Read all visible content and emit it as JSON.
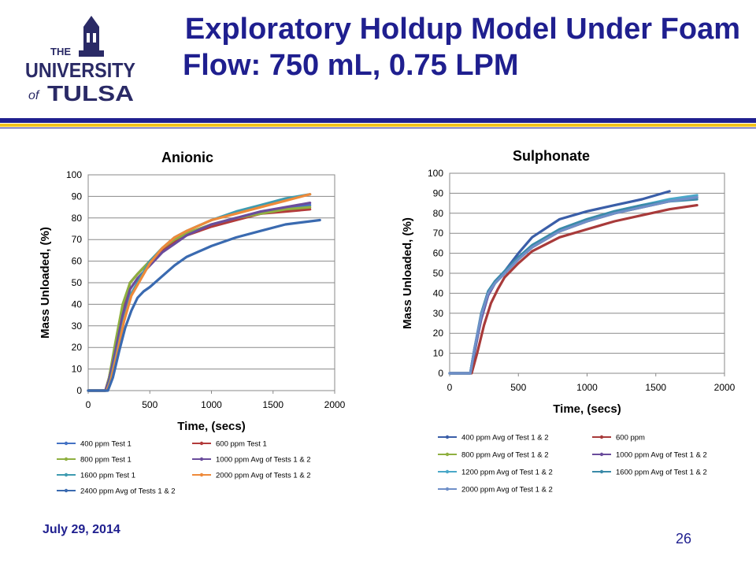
{
  "slide": {
    "title_line1": "Exploratory Holdup Model Under Foam",
    "title_line2": "Flow: 750 mL, 0.75 LPM",
    "date": "July 29, 2014",
    "page_number": "26",
    "logo": {
      "line1": "THE",
      "line2": "UNIVERSITY",
      "line3_prefix": "of",
      "line3": "TULSA"
    }
  },
  "colors": {
    "title": "#1f1f8f",
    "rule_blue": "#1f1f8f",
    "rule_gold": "#f2c21b"
  },
  "chart_data": [
    {
      "type": "line",
      "title": "Anionic",
      "xlabel": "Time, (secs)",
      "ylabel": "Mass Unloaded, (%)",
      "xlim": [
        0,
        2000
      ],
      "ylim": [
        0,
        100
      ],
      "xticks": [
        "0",
        "500",
        "1000",
        "1500",
        "2000"
      ],
      "yticks": [
        "0",
        "10",
        "20",
        "30",
        "40",
        "50",
        "60",
        "70",
        "80",
        "90",
        "100"
      ],
      "grid": true,
      "legend_position": "bottom",
      "series": [
        {
          "name": "400 ppm Test 1",
          "color": "#4472c4",
          "x": [
            0,
            140,
            170,
            220,
            280,
            340,
            400,
            500,
            600,
            700,
            800,
            1000,
            1200,
            1400,
            1600,
            1800
          ],
          "y": [
            0,
            0,
            6,
            20,
            38,
            50,
            54,
            60,
            65,
            69,
            72,
            77,
            80,
            82,
            84,
            86
          ]
        },
        {
          "name": "600 ppm Test 1",
          "color": "#b23a3a",
          "x": [
            0,
            140,
            170,
            220,
            280,
            340,
            400,
            500,
            600,
            700,
            800,
            1000,
            1200,
            1400,
            1600,
            1800
          ],
          "y": [
            0,
            0,
            6,
            20,
            38,
            50,
            54,
            60,
            65,
            69,
            72,
            76,
            79,
            82,
            83,
            84
          ]
        },
        {
          "name": "800 ppm Test 1",
          "color": "#8fb040",
          "x": [
            0,
            140,
            170,
            220,
            280,
            340,
            400,
            500,
            600,
            700,
            800,
            1000,
            1200,
            1400,
            1600,
            1800
          ],
          "y": [
            0,
            0,
            6,
            22,
            40,
            50,
            54,
            60,
            66,
            70,
            73,
            77,
            80,
            82,
            84,
            85
          ]
        },
        {
          "name": "1000 ppm Avg of Tests 1 & 2",
          "color": "#6a4c9c",
          "x": [
            0,
            140,
            170,
            220,
            280,
            340,
            400,
            500,
            600,
            700,
            800,
            1000,
            1200,
            1400,
            1600,
            1800
          ],
          "y": [
            0,
            0,
            5,
            18,
            35,
            47,
            52,
            58,
            64,
            68,
            72,
            77,
            80,
            83,
            85,
            87
          ]
        },
        {
          "name": "1600 ppm Test 1",
          "color": "#3e9bb0",
          "x": [
            0,
            150,
            180,
            230,
            290,
            350,
            410,
            500,
            600,
            700,
            800,
            1000,
            1200,
            1400,
            1600,
            1800
          ],
          "y": [
            0,
            0,
            5,
            17,
            33,
            45,
            51,
            60,
            66,
            71,
            74,
            79,
            83,
            86,
            89,
            91
          ]
        },
        {
          "name": "2000 ppm Avg of Tests 1 & 2",
          "color": "#ee8a3a",
          "x": [
            0,
            150,
            180,
            230,
            290,
            350,
            410,
            500,
            600,
            700,
            800,
            1000,
            1200,
            1400,
            1600,
            1800
          ],
          "y": [
            0,
            0,
            4,
            16,
            32,
            44,
            50,
            59,
            66,
            71,
            74,
            79,
            82,
            85,
            88,
            91
          ]
        },
        {
          "name": "2400 ppm Avg of Tests 1 & 2",
          "color": "#3a6ab0",
          "x": [
            0,
            160,
            200,
            250,
            300,
            350,
            400,
            450,
            500,
            600,
            700,
            800,
            1000,
            1200,
            1400,
            1600,
            1880
          ],
          "y": [
            0,
            0,
            6,
            18,
            29,
            37,
            43,
            46,
            48,
            53,
            58,
            62,
            67,
            71,
            74,
            77,
            79
          ]
        }
      ]
    },
    {
      "type": "line",
      "title": "Sulphonate",
      "xlabel": "Time, (secs)",
      "ylabel": "Mass Unloaded, (%)",
      "xlim": [
        0,
        2000
      ],
      "ylim": [
        0,
        100
      ],
      "xticks": [
        "0",
        "500",
        "1000",
        "1500",
        "2000"
      ],
      "yticks": [
        "0",
        "10",
        "20",
        "30",
        "40",
        "50",
        "60",
        "70",
        "80",
        "90",
        "100"
      ],
      "grid": true,
      "legend_position": "bottom",
      "series": [
        {
          "name": "400 ppm Avg of Test 1 & 2",
          "color": "#3a5ea8",
          "x": [
            0,
            150,
            180,
            230,
            280,
            330,
            400,
            500,
            600,
            800,
            1000,
            1200,
            1400,
            1600
          ],
          "y": [
            0,
            0,
            10,
            28,
            40,
            46,
            51,
            60,
            68,
            77,
            81,
            84,
            87,
            91
          ]
        },
        {
          "name": "600 ppm",
          "color": "#a83a3a",
          "x": [
            0,
            160,
            200,
            250,
            300,
            350,
            400,
            500,
            600,
            800,
            1000,
            1200,
            1400,
            1600,
            1800
          ],
          "y": [
            0,
            0,
            10,
            24,
            35,
            42,
            48,
            55,
            61,
            68,
            72,
            76,
            79,
            82,
            84
          ]
        },
        {
          "name": "800 ppm Avg of Test 1 & 2",
          "color": "#8fb040",
          "x": [
            0,
            150,
            180,
            230,
            280,
            330,
            400,
            500,
            600,
            800,
            1000,
            1200,
            1400,
            1600,
            1800
          ],
          "y": [
            0,
            0,
            12,
            28,
            40,
            45,
            50,
            57,
            63,
            71,
            76,
            80,
            83,
            86,
            88
          ]
        },
        {
          "name": "1000 ppm Avg of Test 1 & 2",
          "color": "#6a4c9c",
          "x": [
            0,
            150,
            180,
            230,
            280,
            330,
            400,
            500,
            600,
            800,
            1000,
            1200,
            1400,
            1600,
            1800
          ],
          "y": [
            0,
            0,
            11,
            27,
            39,
            45,
            50,
            57,
            63,
            71,
            76,
            80,
            83,
            86,
            88
          ]
        },
        {
          "name": "1200 ppm Avg of Test 1 & 2",
          "color": "#4aa8c8",
          "x": [
            0,
            150,
            180,
            230,
            280,
            330,
            400,
            500,
            600,
            800,
            1000,
            1200,
            1400,
            1600,
            1800
          ],
          "y": [
            0,
            0,
            12,
            29,
            41,
            46,
            51,
            58,
            64,
            72,
            77,
            81,
            84,
            87,
            89
          ]
        },
        {
          "name": "1600 ppm Avg of Test 1 & 2",
          "color": "#3a8aa8",
          "x": [
            0,
            150,
            180,
            230,
            280,
            330,
            400,
            500,
            600,
            800,
            1000,
            1200,
            1400,
            1600,
            1800
          ],
          "y": [
            0,
            0,
            12,
            30,
            41,
            46,
            51,
            58,
            64,
            72,
            77,
            81,
            84,
            86,
            87
          ]
        },
        {
          "name": "2000 ppm Avg of Test 1 & 2",
          "color": "#6f8fc8",
          "x": [
            0,
            150,
            180,
            230,
            280,
            330,
            400,
            500,
            600,
            800,
            1000,
            1200,
            1400,
            1600,
            1800
          ],
          "y": [
            0,
            0,
            12,
            29,
            40,
            45,
            50,
            57,
            63,
            71,
            76,
            80,
            83,
            86,
            88
          ]
        }
      ]
    }
  ]
}
